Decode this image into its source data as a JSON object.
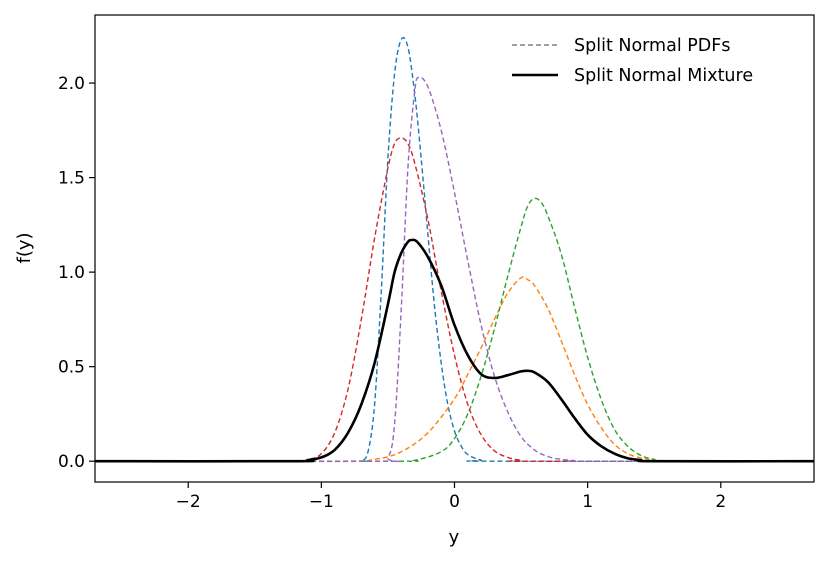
{
  "chart_data": {
    "type": "line",
    "xlabel": "y",
    "ylabel": "f(y)",
    "xlim": [
      -2.7,
      2.7
    ],
    "ylim": [
      -0.11,
      2.36
    ],
    "xticks": [
      -2,
      -1,
      0,
      1,
      2
    ],
    "xtick_labels": [
      "−2",
      "−1",
      "0",
      "1",
      "2"
    ],
    "yticks": [
      0.0,
      0.5,
      1.0,
      1.5,
      2.0
    ],
    "ytick_labels": [
      "0.0",
      "0.5",
      "1.0",
      "1.5",
      "2.0"
    ],
    "grid": false,
    "legend": {
      "position": "top-right",
      "entries": [
        {
          "label": "Split Normal PDFs",
          "style": "dashed",
          "color": "#808080"
        },
        {
          "label": "Split Normal Mixture",
          "style": "solid",
          "color": "#000000"
        }
      ]
    },
    "series": [
      {
        "color": "#1f77b4",
        "style": "dashed",
        "points": [
          [
            -2.7,
            0
          ],
          [
            -0.8,
            0
          ],
          [
            -0.7,
            0.005
          ],
          [
            -0.65,
            0.05
          ],
          [
            -0.6,
            0.3
          ],
          [
            -0.55,
            0.9
          ],
          [
            -0.5,
            1.6
          ],
          [
            -0.45,
            2.05
          ],
          [
            -0.4,
            2.23
          ],
          [
            -0.35,
            2.19
          ],
          [
            -0.3,
            1.95
          ],
          [
            -0.25,
            1.6
          ],
          [
            -0.2,
            1.2
          ],
          [
            -0.15,
            0.82
          ],
          [
            -0.1,
            0.52
          ],
          [
            -0.05,
            0.3
          ],
          [
            0,
            0.16
          ],
          [
            0.05,
            0.08
          ],
          [
            0.1,
            0.035
          ],
          [
            0.2,
            0.006
          ],
          [
            0.3,
            0
          ],
          [
            2.7,
            0
          ]
        ]
      },
      {
        "color": "#ff7f0e",
        "style": "dashed",
        "points": [
          [
            -2.7,
            0
          ],
          [
            -0.9,
            0
          ],
          [
            -0.6,
            0.01
          ],
          [
            -0.4,
            0.05
          ],
          [
            -0.2,
            0.15
          ],
          [
            0,
            0.33
          ],
          [
            0.1,
            0.46
          ],
          [
            0.2,
            0.6
          ],
          [
            0.3,
            0.75
          ],
          [
            0.4,
            0.89
          ],
          [
            0.5,
            0.97
          ],
          [
            0.55,
            0.96
          ],
          [
            0.6,
            0.93
          ],
          [
            0.7,
            0.81
          ],
          [
            0.8,
            0.64
          ],
          [
            0.9,
            0.46
          ],
          [
            1.0,
            0.3
          ],
          [
            1.1,
            0.18
          ],
          [
            1.2,
            0.09
          ],
          [
            1.3,
            0.04
          ],
          [
            1.4,
            0.017
          ],
          [
            1.5,
            0.006
          ],
          [
            1.6,
            0
          ],
          [
            2.7,
            0
          ]
        ]
      },
      {
        "color": "#2ca02c",
        "style": "dashed",
        "points": [
          [
            -2.7,
            0
          ],
          [
            -0.5,
            0
          ],
          [
            -0.3,
            0.005
          ],
          [
            -0.1,
            0.05
          ],
          [
            0,
            0.12
          ],
          [
            0.1,
            0.25
          ],
          [
            0.2,
            0.45
          ],
          [
            0.3,
            0.7
          ],
          [
            0.4,
            0.98
          ],
          [
            0.5,
            1.24
          ],
          [
            0.55,
            1.35
          ],
          [
            0.6,
            1.39
          ],
          [
            0.65,
            1.37
          ],
          [
            0.7,
            1.3
          ],
          [
            0.8,
            1.1
          ],
          [
            0.9,
            0.82
          ],
          [
            1.0,
            0.55
          ],
          [
            1.1,
            0.33
          ],
          [
            1.2,
            0.17
          ],
          [
            1.3,
            0.08
          ],
          [
            1.4,
            0.03
          ],
          [
            1.5,
            0.01
          ],
          [
            1.6,
            0
          ],
          [
            2.7,
            0
          ]
        ]
      },
      {
        "color": "#d62728",
        "style": "dashed",
        "points": [
          [
            -2.7,
            0
          ],
          [
            -1.3,
            0
          ],
          [
            -1.1,
            0.01
          ],
          [
            -1.0,
            0.04
          ],
          [
            -0.9,
            0.15
          ],
          [
            -0.8,
            0.38
          ],
          [
            -0.7,
            0.75
          ],
          [
            -0.6,
            1.18
          ],
          [
            -0.5,
            1.55
          ],
          [
            -0.45,
            1.68
          ],
          [
            -0.4,
            1.71
          ],
          [
            -0.35,
            1.68
          ],
          [
            -0.3,
            1.58
          ],
          [
            -0.2,
            1.28
          ],
          [
            -0.1,
            0.9
          ],
          [
            0,
            0.56
          ],
          [
            0.1,
            0.3
          ],
          [
            0.2,
            0.14
          ],
          [
            0.3,
            0.055
          ],
          [
            0.4,
            0.02
          ],
          [
            0.5,
            0.005
          ],
          [
            0.6,
            0
          ],
          [
            2.7,
            0
          ]
        ]
      },
      {
        "color": "#9467bd",
        "style": "dashed",
        "points": [
          [
            -2.7,
            0
          ],
          [
            -0.6,
            0
          ],
          [
            -0.5,
            0.02
          ],
          [
            -0.45,
            0.2
          ],
          [
            -0.4,
            0.8
          ],
          [
            -0.35,
            1.55
          ],
          [
            -0.3,
            1.95
          ],
          [
            -0.27,
            2.03
          ],
          [
            -0.2,
            1.98
          ],
          [
            -0.1,
            1.75
          ],
          [
            0,
            1.42
          ],
          [
            0.1,
            1.06
          ],
          [
            0.2,
            0.72
          ],
          [
            0.3,
            0.45
          ],
          [
            0.4,
            0.26
          ],
          [
            0.5,
            0.13
          ],
          [
            0.6,
            0.06
          ],
          [
            0.7,
            0.025
          ],
          [
            0.8,
            0.01
          ],
          [
            0.9,
            0.003
          ],
          [
            1.0,
            0
          ],
          [
            2.7,
            0
          ]
        ]
      },
      {
        "color": "#000000",
        "style": "solid",
        "points": [
          [
            -2.7,
            0
          ],
          [
            -1.2,
            0
          ],
          [
            -1.1,
            0.006
          ],
          [
            -1.0,
            0.02
          ],
          [
            -0.9,
            0.06
          ],
          [
            -0.8,
            0.15
          ],
          [
            -0.7,
            0.3
          ],
          [
            -0.6,
            0.52
          ],
          [
            -0.5,
            0.83
          ],
          [
            -0.45,
            1.0
          ],
          [
            -0.4,
            1.1
          ],
          [
            -0.35,
            1.16
          ],
          [
            -0.32,
            1.17
          ],
          [
            -0.28,
            1.16
          ],
          [
            -0.2,
            1.08
          ],
          [
            -0.1,
            0.93
          ],
          [
            0,
            0.72
          ],
          [
            0.1,
            0.56
          ],
          [
            0.2,
            0.46
          ],
          [
            0.3,
            0.44
          ],
          [
            0.4,
            0.455
          ],
          [
            0.5,
            0.475
          ],
          [
            0.55,
            0.478
          ],
          [
            0.6,
            0.47
          ],
          [
            0.7,
            0.42
          ],
          [
            0.8,
            0.33
          ],
          [
            0.9,
            0.23
          ],
          [
            1.0,
            0.14
          ],
          [
            1.1,
            0.08
          ],
          [
            1.2,
            0.04
          ],
          [
            1.3,
            0.016
          ],
          [
            1.4,
            0.006
          ],
          [
            1.5,
            0
          ],
          [
            2.7,
            0
          ]
        ]
      }
    ]
  }
}
